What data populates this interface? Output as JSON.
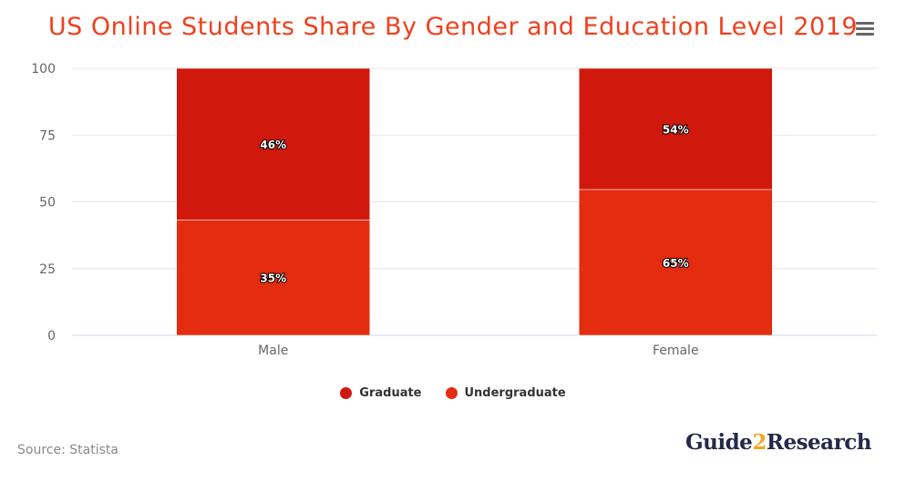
{
  "chart_data": {
    "type": "bar",
    "stacking": "percent",
    "title": "US Online Students Share By Gender and Education Level 2019",
    "categories": [
      "Male",
      "Female"
    ],
    "series": [
      {
        "name": "Graduate",
        "values": [
          46,
          54
        ],
        "labels": [
          "46%",
          "54%"
        ],
        "color": "#d0190c"
      },
      {
        "name": "Undergraduate",
        "values": [
          35,
          65
        ],
        "labels": [
          "35%",
          "65%"
        ],
        "color": "#e32c10"
      }
    ],
    "ylim": [
      0,
      100
    ],
    "yticks": [
      "0",
      "25",
      "50",
      "75",
      "100"
    ],
    "grid": true,
    "legend": "bottom-center"
  },
  "source": "Source: Statista",
  "logo": {
    "part1": "Guide",
    "part2": "2",
    "part3": "Research"
  },
  "menu_icon": "hamburger-icon"
}
